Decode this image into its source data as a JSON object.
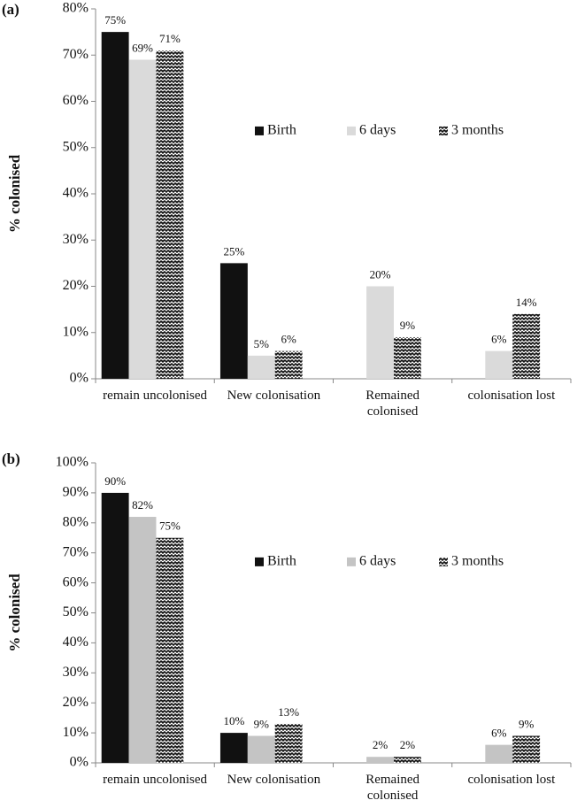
{
  "chart_data": [
    {
      "type": "bar",
      "panel": "(a)",
      "y_label": "% colonised",
      "categories": [
        "remain uncolonised",
        "New colonisation",
        "Remained colonised",
        "colonisation lost"
      ],
      "series": [
        {
          "name": "Birth",
          "color": "#111111",
          "values": [
            75,
            25,
            null,
            null
          ],
          "value_labels": [
            "75%",
            "25%",
            null,
            null
          ]
        },
        {
          "name": "6 days",
          "color": "#dadada",
          "values": [
            69,
            5,
            20,
            6
          ],
          "value_labels": [
            "69%",
            "5%",
            "20%",
            "6%"
          ]
        },
        {
          "name": "3 months",
          "color": "#111111",
          "pattern": "zigzag",
          "values": [
            71,
            6,
            9,
            14
          ],
          "value_labels": [
            "71%",
            "6%",
            "9%",
            "14%"
          ]
        }
      ],
      "ylim": [
        0,
        80
      ],
      "yticks": [
        {
          "value": 0,
          "label": "0%"
        },
        {
          "value": 10,
          "label": "10%"
        },
        {
          "value": 20,
          "label": "20%"
        },
        {
          "value": 30,
          "label": "30%"
        },
        {
          "value": 40,
          "label": "40%"
        },
        {
          "value": 50,
          "label": "50%"
        },
        {
          "value": 60,
          "label": "60%"
        },
        {
          "value": 70,
          "label": "70%"
        },
        {
          "value": 80,
          "label": "80%"
        }
      ],
      "legend": "center"
    },
    {
      "type": "bar",
      "panel": "(b)",
      "y_label": "% colonised",
      "categories": [
        "remain uncolonised",
        "New colonisation",
        "Remained colonised",
        "colonisation lost"
      ],
      "series": [
        {
          "name": "Birth",
          "color": "#111111",
          "values": [
            90,
            10,
            null,
            null
          ],
          "value_labels": [
            "90%",
            "10%",
            null,
            null
          ]
        },
        {
          "name": "6 days",
          "color": "#c4c4c4",
          "values": [
            82,
            9,
            2,
            6
          ],
          "value_labels": [
            "82%",
            "9%",
            "2%",
            "6%"
          ]
        },
        {
          "name": "3 months",
          "color": "#111111",
          "pattern": "zigzag",
          "values": [
            75,
            13,
            2,
            9
          ],
          "value_labels": [
            "75%",
            "13%",
            "2%",
            "9%"
          ]
        }
      ],
      "ylim": [
        0,
        100
      ],
      "yticks": [
        {
          "value": 0,
          "label": "0%"
        },
        {
          "value": 10,
          "label": "10%"
        },
        {
          "value": 20,
          "label": "20%"
        },
        {
          "value": 30,
          "label": "30%"
        },
        {
          "value": 40,
          "label": "40%"
        },
        {
          "value": 50,
          "label": "50%"
        },
        {
          "value": 60,
          "label": "60%"
        },
        {
          "value": 70,
          "label": "70%"
        },
        {
          "value": 80,
          "label": "80%"
        },
        {
          "value": 90,
          "label": "90%"
        },
        {
          "value": 100,
          "label": "100%"
        }
      ],
      "legend": "center"
    }
  ]
}
